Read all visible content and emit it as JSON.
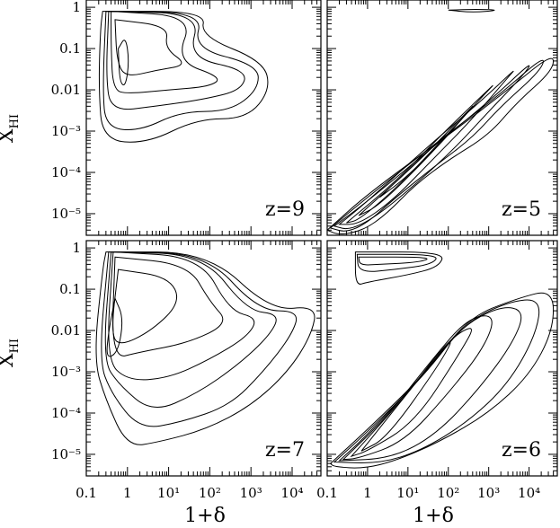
{
  "figure": {
    "ylabel": "X",
    "ylabel_sub": "HI",
    "xlabel": "1+δ"
  },
  "chart_data": [
    {
      "type": "contour",
      "panel": "top-left",
      "title": "z=9",
      "xscale": "log",
      "yscale": "log",
      "xlim": [
        0.1,
        50000
      ],
      "ylim": [
        3e-06,
        1.5
      ],
      "x_ticks": [
        "0.1",
        "1",
        "10¹",
        "10²",
        "10³",
        "10⁴"
      ],
      "y_ticks": [
        "1",
        "0.1",
        "0.01",
        "10⁻³",
        "10⁻⁴",
        "10⁻⁵"
      ],
      "y_tick_values": [
        1,
        0.1,
        0.01,
        0.001,
        0.0001,
        1e-05
      ],
      "contours": [
        [
          [
            0.25,
            0.8
          ],
          [
            80,
            0.8
          ],
          [
            60,
            0.2
          ],
          [
            2000,
            0.05
          ],
          [
            3000,
            0.01
          ],
          [
            800,
            0.002
          ],
          [
            50,
            0.002
          ],
          [
            3,
            0.0005
          ],
          [
            0.25,
            0.0006
          ],
          [
            0.2,
            0.01
          ],
          [
            0.22,
            0.3
          ]
        ],
        [
          [
            0.3,
            0.8
          ],
          [
            70,
            0.75
          ],
          [
            40,
            0.1
          ],
          [
            1500,
            0.04
          ],
          [
            1500,
            0.01
          ],
          [
            300,
            0.003
          ],
          [
            20,
            0.003
          ],
          [
            2,
            0.001
          ],
          [
            0.3,
            0.0012
          ],
          [
            0.25,
            0.01
          ]
        ],
        [
          [
            0.35,
            0.8
          ],
          [
            60,
            0.7
          ],
          [
            30,
            0.06
          ],
          [
            800,
            0.03
          ],
          [
            600,
            0.01
          ],
          [
            80,
            0.006
          ],
          [
            5,
            0.004
          ],
          [
            0.4,
            0.003
          ],
          [
            0.3,
            0.02
          ]
        ],
        [
          [
            0.4,
            0.8
          ],
          [
            40,
            0.6
          ],
          [
            15,
            0.05
          ],
          [
            200,
            0.02
          ],
          [
            100,
            0.012
          ],
          [
            10,
            0.01
          ],
          [
            1,
            0.008
          ],
          [
            0.45,
            0.01
          ],
          [
            0.4,
            0.1
          ]
        ],
        [
          [
            0.5,
            0.5
          ],
          [
            10,
            0.35
          ],
          [
            8,
            0.1
          ],
          [
            30,
            0.04
          ],
          [
            5,
            0.03
          ],
          [
            0.9,
            0.02
          ],
          [
            0.55,
            0.05
          ]
        ],
        [
          [
            0.6,
            0.1
          ],
          [
            0.9,
            0.2
          ],
          [
            1.1,
            0.05
          ],
          [
            0.9,
            0.012
          ],
          [
            0.65,
            0.015
          ]
        ]
      ]
    },
    {
      "type": "contour",
      "panel": "top-right",
      "title": "z=5",
      "xscale": "log",
      "yscale": "log",
      "xlim": [
        0.1,
        50000
      ],
      "ylim": [
        3e-06,
        1.5
      ],
      "x_ticks": [
        "0.1",
        "1",
        "10¹",
        "10²",
        "10³",
        "10⁴"
      ],
      "y_ticks": [
        "1",
        "0.1",
        "0.01",
        "10⁻³",
        "10⁻⁴",
        "10⁻⁵"
      ],
      "y_tick_values": [
        1,
        0.1,
        0.01,
        0.001,
        0.0001,
        1e-05
      ],
      "contours": [
        [
          [
            0.1,
            4e-06
          ],
          [
            1,
            3e-05
          ],
          [
            100,
            0.0008
          ],
          [
            3000,
            0.01
          ],
          [
            40000,
            0.08
          ],
          [
            40000,
            0.03
          ],
          [
            5000,
            0.005
          ],
          [
            1000,
            0.0008
          ],
          [
            100,
            0.0002
          ],
          [
            15,
            5e-05
          ],
          [
            3,
            1e-05
          ],
          [
            0.8,
            4e-06
          ],
          [
            0.2,
            3e-06
          ]
        ],
        [
          [
            0.12,
            4.5e-06
          ],
          [
            1,
            2.5e-05
          ],
          [
            60,
            0.0006
          ],
          [
            2000,
            0.008
          ],
          [
            25000,
            0.07
          ],
          [
            20000,
            0.03
          ],
          [
            2000,
            0.004
          ],
          [
            400,
            0.0007
          ],
          [
            50,
            0.00015
          ],
          [
            5,
            2.5e-05
          ],
          [
            1,
            6e-06
          ],
          [
            0.3,
            3.5e-06
          ]
        ],
        [
          [
            0.15,
            5e-06
          ],
          [
            1,
            2e-05
          ],
          [
            40,
            0.0004
          ],
          [
            1200,
            0.006
          ],
          [
            12000,
            0.05
          ],
          [
            8000,
            0.025
          ],
          [
            1000,
            0.003
          ],
          [
            150,
            0.0004
          ],
          [
            15,
            5e-05
          ],
          [
            1.5,
            8e-06
          ],
          [
            0.35,
            4e-06
          ]
        ],
        [
          [
            0.2,
            5.5e-06
          ],
          [
            1,
            2e-05
          ],
          [
            25,
            0.00035
          ],
          [
            600,
            0.005
          ],
          [
            5000,
            0.035
          ],
          [
            3000,
            0.02
          ],
          [
            400,
            0.002
          ],
          [
            40,
            0.0002
          ],
          [
            4,
            2e-05
          ],
          [
            0.6,
            5.5e-06
          ]
        ],
        [
          [
            0.3,
            6e-06
          ],
          [
            5,
            6e-05
          ],
          [
            100,
            0.0012
          ],
          [
            1500,
            0.015
          ],
          [
            1000,
            0.01
          ],
          [
            80,
            0.0007
          ],
          [
            5,
            4e-05
          ],
          [
            0.6,
            7e-06
          ]
        ],
        [
          [
            0.6,
            9e-06
          ],
          [
            20,
            0.0002
          ],
          [
            300,
            0.003
          ],
          [
            500,
            0.005
          ],
          [
            40,
            0.0003
          ],
          [
            2,
            1.6e-05
          ]
        ],
        [
          [
            2,
            2.5e-05
          ],
          [
            60,
            0.0006
          ],
          [
            150,
            0.0012
          ],
          [
            10,
            8e-05
          ]
        ],
        [
          [
            100,
            0.85
          ],
          [
            500,
            0.9
          ],
          [
            2000,
            0.85
          ],
          [
            400,
            0.75
          ]
        ]
      ]
    },
    {
      "type": "contour",
      "panel": "bottom-left",
      "title": "z=7",
      "xscale": "log",
      "yscale": "log",
      "xlim": [
        0.1,
        50000
      ],
      "ylim": [
        3e-06,
        1.5
      ],
      "x_ticks": [
        "0.1",
        "1",
        "10¹",
        "10²",
        "10³",
        "10⁴"
      ],
      "y_ticks": [
        "1",
        "0.1",
        "0.01",
        "10⁻³",
        "10⁻⁴",
        "10⁻⁵"
      ],
      "y_tick_values": [
        1,
        0.1,
        0.01,
        0.001,
        0.0001,
        1e-05
      ],
      "contours": [
        [
          [
            0.3,
            0.8
          ],
          [
            90,
            0.8
          ],
          [
            3000,
            0.03
          ],
          [
            40000,
            0.04
          ],
          [
            30000,
            0.008
          ],
          [
            8000,
            0.001
          ],
          [
            1000,
            0.00015
          ],
          [
            80,
            4e-05
          ],
          [
            6,
            2e-05
          ],
          [
            1,
            1.5e-05
          ],
          [
            0.3,
            0.0002
          ],
          [
            0.15,
            0.002
          ],
          [
            0.25,
            0.3
          ]
        ],
        [
          [
            0.35,
            0.8
          ],
          [
            80,
            0.75
          ],
          [
            1500,
            0.03
          ],
          [
            15000,
            0.03
          ],
          [
            10000,
            0.008
          ],
          [
            2000,
            0.001
          ],
          [
            300,
            0.00015
          ],
          [
            20,
            6e-05
          ],
          [
            2,
            4e-05
          ],
          [
            0.4,
            0.0003
          ],
          [
            0.2,
            0.002
          ]
        ],
        [
          [
            0.4,
            0.8
          ],
          [
            70,
            0.7
          ],
          [
            800,
            0.03
          ],
          [
            5000,
            0.025
          ],
          [
            3000,
            0.008
          ],
          [
            500,
            0.0015
          ],
          [
            50,
            0.0003
          ],
          [
            4,
            0.0001
          ],
          [
            0.6,
            0.0005
          ],
          [
            0.25,
            0.002
          ]
        ],
        [
          [
            0.45,
            0.8
          ],
          [
            60,
            0.6
          ],
          [
            300,
            0.03
          ],
          [
            1500,
            0.02
          ],
          [
            800,
            0.007
          ],
          [
            100,
            0.002
          ],
          [
            10,
            0.0007
          ],
          [
            1,
            0.0006
          ],
          [
            0.3,
            0.002
          ]
        ],
        [
          [
            0.5,
            0.6
          ],
          [
            30,
            0.4
          ],
          [
            100,
            0.05
          ],
          [
            300,
            0.015
          ],
          [
            30,
            0.005
          ],
          [
            2,
            0.003
          ],
          [
            0.4,
            0.002
          ]
        ],
        [
          [
            0.6,
            0.3
          ],
          [
            10,
            0.2
          ],
          [
            20,
            0.05
          ],
          [
            4,
            0.01
          ],
          [
            0.6,
            0.004
          ],
          [
            0.4,
            0.01
          ]
        ],
        [
          [
            0.5,
            0.06
          ],
          [
            0.8,
            0.02
          ],
          [
            0.6,
            0.003
          ],
          [
            0.3,
            0.002
          ],
          [
            0.35,
            0.01
          ]
        ]
      ]
    },
    {
      "type": "contour",
      "panel": "bottom-right",
      "title": "z=6",
      "xscale": "log",
      "yscale": "log",
      "xlim": [
        0.1,
        50000
      ],
      "ylim": [
        3e-06,
        1.5
      ],
      "x_ticks": [
        "0.1",
        "1",
        "10¹",
        "10²",
        "10³",
        "10⁴"
      ],
      "y_ticks": [
        "1",
        "0.1",
        "0.01",
        "10⁻³",
        "10⁻⁴",
        "10⁻⁵"
      ],
      "y_tick_values": [
        1,
        0.1,
        0.01,
        0.001,
        0.0001,
        1e-05
      ],
      "contours": [
        [
          [
            0.12,
            6e-06
          ],
          [
            1,
            4e-05
          ],
          [
            30,
            0.001
          ],
          [
            300,
            0.02
          ],
          [
            5000,
            0.06
          ],
          [
            40000,
            0.1
          ],
          [
            40000,
            0.01
          ],
          [
            10000,
            0.0008
          ],
          [
            1000,
            0.0001
          ],
          [
            60,
            2e-05
          ],
          [
            5,
            7e-06
          ],
          [
            0.8,
            4.5e-06
          ],
          [
            0.15,
            5e-06
          ]
        ],
        [
          [
            0.15,
            6.5e-06
          ],
          [
            1,
            3.5e-05
          ],
          [
            25,
            0.0008
          ],
          [
            250,
            0.015
          ],
          [
            3000,
            0.05
          ],
          [
            20000,
            0.06
          ],
          [
            15000,
            0.008
          ],
          [
            3000,
            0.0005
          ],
          [
            300,
            6e-05
          ],
          [
            20,
            1.2e-05
          ],
          [
            2,
            6e-06
          ]
        ],
        [
          [
            0.2,
            7e-06
          ],
          [
            1,
            3e-05
          ],
          [
            20,
            0.0007
          ],
          [
            200,
            0.012
          ],
          [
            2000,
            0.04
          ],
          [
            8000,
            0.03
          ],
          [
            4000,
            0.005
          ],
          [
            600,
            0.0004
          ],
          [
            50,
            3e-05
          ],
          [
            4,
            8e-06
          ]
        ],
        [
          [
            0.25,
            7.5e-06
          ],
          [
            3,
            8e-05
          ],
          [
            40,
            0.002
          ],
          [
            300,
            0.02
          ],
          [
            1500,
            0.025
          ],
          [
            800,
            0.004
          ],
          [
            100,
            0.0003
          ],
          [
            8,
            2e-05
          ],
          [
            0.6,
            8e-06
          ]
        ],
        [
          [
            0.4,
            9e-06
          ],
          [
            10,
            0.0003
          ],
          [
            100,
            0.006
          ],
          [
            500,
            0.015
          ],
          [
            200,
            0.003
          ],
          [
            15,
            6e-05
          ],
          [
            1,
            1.2e-05
          ]
        ],
        [
          [
            0.7,
            1.2e-05
          ],
          [
            30,
            0.0012
          ],
          [
            150,
            0.008
          ],
          [
            60,
            0.0015
          ],
          [
            3,
            2.5e-05
          ]
        ],
        [
          [
            0.5,
            0.8
          ],
          [
            80,
            0.8
          ],
          [
            60,
            0.35
          ],
          [
            10,
            0.22
          ],
          [
            1,
            0.15
          ],
          [
            0.5,
            0.12
          ]
        ],
        [
          [
            0.55,
            0.7
          ],
          [
            60,
            0.7
          ],
          [
            40,
            0.4
          ],
          [
            5,
            0.3
          ],
          [
            0.6,
            0.25
          ]
        ],
        [
          [
            0.6,
            0.6
          ],
          [
            40,
            0.6
          ],
          [
            20,
            0.45
          ],
          [
            2,
            0.4
          ],
          [
            0.65,
            0.38
          ]
        ]
      ]
    }
  ]
}
